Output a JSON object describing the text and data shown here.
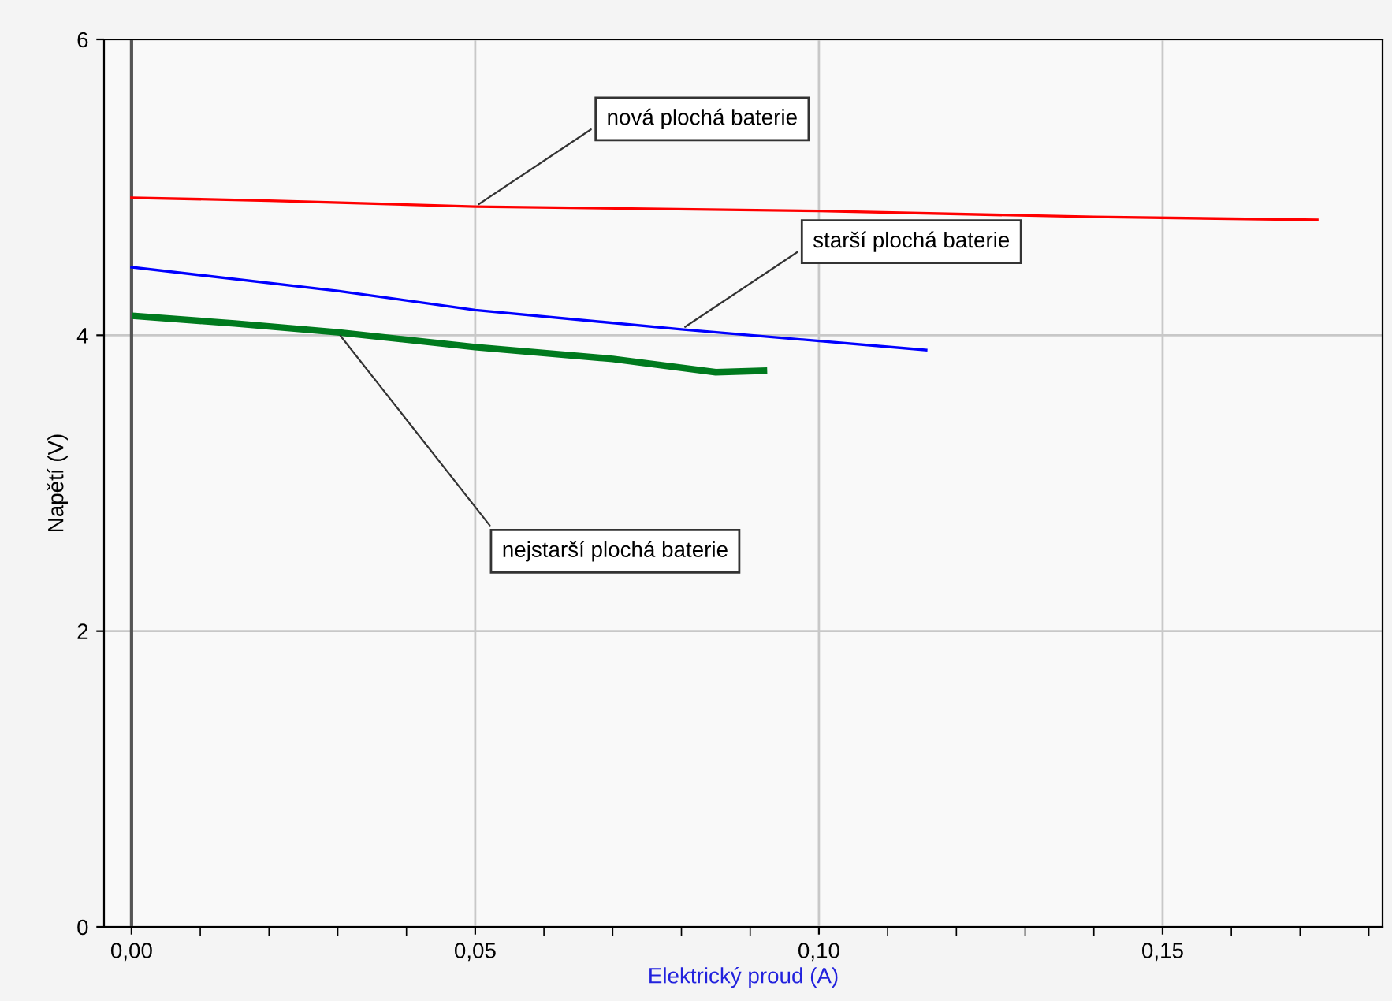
{
  "chart_data": {
    "type": "line",
    "xlabel": "Elektrický proud (A)",
    "ylabel": "Napětí (V)",
    "xlim": [
      -0.004,
      0.182
    ],
    "ylim": [
      0,
      6
    ],
    "xticks": [
      {
        "value": 0,
        "label": "0,00"
      },
      {
        "value": 0.05,
        "label": "0,05"
      },
      {
        "value": 0.1,
        "label": "0,10"
      },
      {
        "value": 0.15,
        "label": "0,15"
      }
    ],
    "yticks": [
      0,
      2,
      4,
      6
    ],
    "grid": true,
    "line_style": "solid",
    "marker": "none",
    "ref_lines": [
      {
        "axis": "x",
        "value": 0,
        "color": "#555555"
      }
    ],
    "series": [
      {
        "name": "nová plochá baterie",
        "color": "#ff0000",
        "x": [
          0,
          0.02,
          0.05,
          0.1,
          0.14,
          0.1725
        ],
        "values": [
          4.93,
          4.91,
          4.87,
          4.84,
          4.8,
          4.78
        ]
      },
      {
        "name": "starší plochá baterie",
        "color": "#0000ff",
        "x": [
          0,
          0.03,
          0.05,
          0.08,
          0.1156
        ],
        "values": [
          4.46,
          4.3,
          4.17,
          4.04,
          3.9
        ]
      },
      {
        "name": "nejstarší plochá baterie",
        "color": "#007a1e",
        "x": [
          0.0005,
          0.015,
          0.03,
          0.05,
          0.07,
          0.085,
          0.092
        ],
        "values": [
          4.13,
          4.08,
          4.02,
          3.92,
          3.84,
          3.75,
          3.76
        ]
      }
    ]
  }
}
